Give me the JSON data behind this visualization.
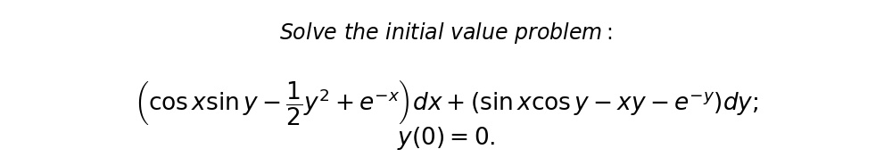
{
  "title_text": "\\textit{Solve the initial value problem}:",
  "line2_text": "$\\left(\\cos x \\sin y - \\dfrac{1}{2}y^2 + e^{-x}\\right)dx + (\\sin x \\cos y - xy - e^{-y})dy;$",
  "line3_text": "$y(0) = 0.$",
  "background_color": "#ffffff",
  "text_color": "#000000",
  "title_fontsize": 17,
  "body_fontsize": 19,
  "fig_width": 10.0,
  "fig_height": 1.86,
  "dpi": 100
}
